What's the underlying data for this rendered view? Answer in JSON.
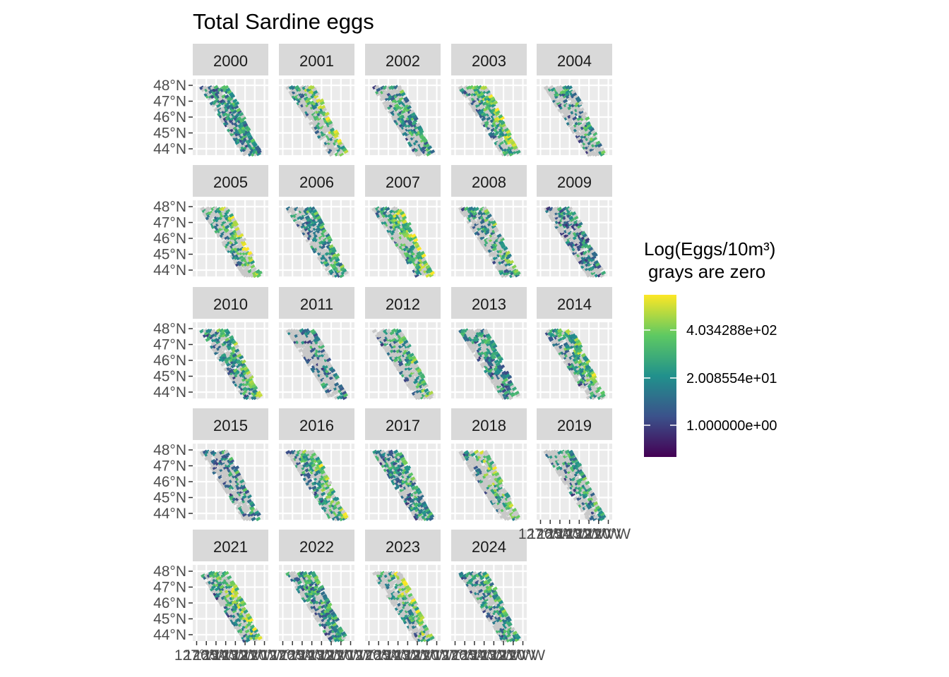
{
  "chart_data": {
    "type": "heatmap",
    "title": "Total Sardine eggs",
    "facet_variable": "year",
    "panels": [
      "2000",
      "2001",
      "2002",
      "2003",
      "2004",
      "2005",
      "2006",
      "2007",
      "2008",
      "2009",
      "2010",
      "2011",
      "2012",
      "2013",
      "2014",
      "2015",
      "2016",
      "2017",
      "2018",
      "2019",
      "2021",
      "2022",
      "2023",
      "2024"
    ],
    "y_axis": {
      "ticks": [
        48,
        47,
        46,
        45,
        44
      ],
      "labels": [
        "48°N",
        "47°N",
        "46°N",
        "45°N",
        "44°N"
      ]
    },
    "x_axis": {
      "ticks": [
        -127,
        -126,
        -125,
        -124,
        -123,
        -122,
        -121,
        -120
      ],
      "labels": [
        "127°W",
        "126°W",
        "125°W",
        "124°W",
        "123°W",
        "122°W",
        "121°W",
        "120°W"
      ]
    },
    "legend": {
      "title_line1": "Log(Eggs/10m³)",
      "title_line2": "grays are zero",
      "labels": [
        "4.034288e+02",
        "2.008554e+01",
        "1.000000e+00"
      ],
      "placement": "right",
      "colors": [
        "#440154",
        "#3b528b",
        "#21918c",
        "#5ec962",
        "#fde725"
      ],
      "zero_color": "#c8c8c8"
    },
    "grid": true,
    "panel_background": "#ebebeb",
    "strip_background": "#d9d9d9"
  }
}
